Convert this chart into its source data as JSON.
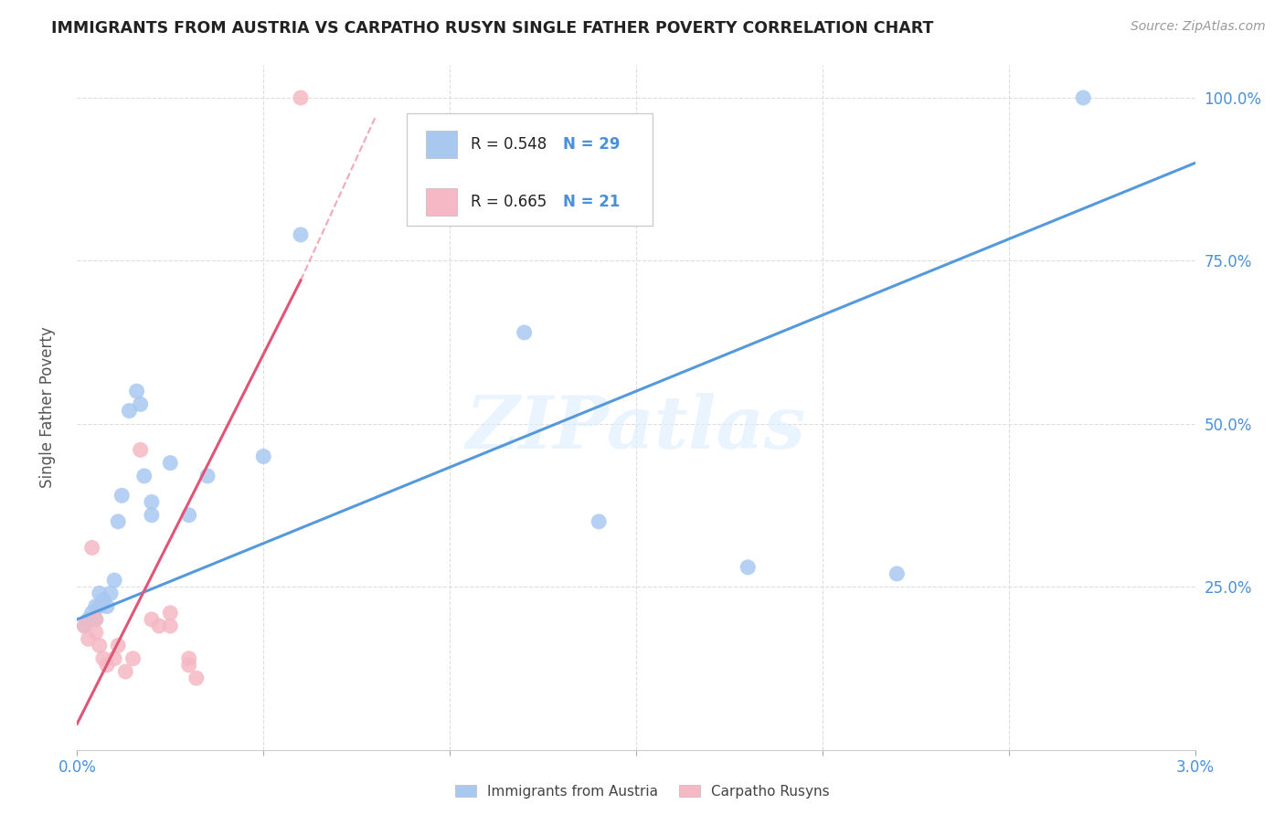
{
  "title": "IMMIGRANTS FROM AUSTRIA VS CARPATHO RUSYN SINGLE FATHER POVERTY CORRELATION CHART",
  "source": "Source: ZipAtlas.com",
  "ylabel": "Single Father Poverty",
  "xlim": [
    0.0,
    0.03
  ],
  "ylim": [
    0.0,
    1.05
  ],
  "xticks": [
    0.0,
    0.005,
    0.01,
    0.015,
    0.02,
    0.025,
    0.03
  ],
  "xticklabels": [
    "0.0%",
    "",
    "",
    "",
    "",
    "",
    "3.0%"
  ],
  "yticks": [
    0.0,
    0.25,
    0.5,
    0.75,
    1.0
  ],
  "yticklabels": [
    "",
    "25.0%",
    "50.0%",
    "75.0%",
    "100.0%"
  ],
  "blue_color": "#a8c8f0",
  "pink_color": "#f5b8c4",
  "blue_line_color": "#5599dd",
  "pink_line_color": "#e05575",
  "legend_r_blue": "R = 0.548",
  "legend_n_blue": "N = 29",
  "legend_r_pink": "R = 0.665",
  "legend_n_pink": "N = 21",
  "watermark": "ZIPatlas",
  "blue_points_x": [
    0.0002,
    0.0003,
    0.0004,
    0.0005,
    0.0005,
    0.0006,
    0.0006,
    0.0007,
    0.0008,
    0.0009,
    0.001,
    0.0011,
    0.0012,
    0.0014,
    0.0016,
    0.0017,
    0.0018,
    0.002,
    0.002,
    0.0025,
    0.003,
    0.0035,
    0.005,
    0.006,
    0.012,
    0.014,
    0.018,
    0.022,
    0.027
  ],
  "blue_points_y": [
    0.19,
    0.2,
    0.21,
    0.2,
    0.22,
    0.22,
    0.24,
    0.23,
    0.22,
    0.24,
    0.26,
    0.35,
    0.39,
    0.52,
    0.55,
    0.53,
    0.42,
    0.36,
    0.38,
    0.44,
    0.36,
    0.42,
    0.45,
    0.79,
    0.64,
    0.35,
    0.28,
    0.27,
    1.0
  ],
  "pink_points_x": [
    0.0002,
    0.0003,
    0.0004,
    0.0005,
    0.0005,
    0.0006,
    0.0007,
    0.0008,
    0.001,
    0.0011,
    0.0013,
    0.0015,
    0.0017,
    0.002,
    0.0022,
    0.0025,
    0.0025,
    0.003,
    0.003,
    0.0032,
    0.006
  ],
  "pink_points_y": [
    0.19,
    0.17,
    0.31,
    0.2,
    0.18,
    0.16,
    0.14,
    0.13,
    0.14,
    0.16,
    0.12,
    0.14,
    0.46,
    0.2,
    0.19,
    0.21,
    0.19,
    0.14,
    0.13,
    0.11,
    1.0
  ],
  "blue_line_x0": 0.0,
  "blue_line_y0": 0.2,
  "blue_line_x1": 0.03,
  "blue_line_y1": 0.9,
  "pink_line_x0": 0.0,
  "pink_line_y0": 0.04,
  "pink_line_x1": 0.006,
  "pink_line_y1": 0.72,
  "background_color": "#ffffff",
  "grid_color": "#dddddd",
  "grid_style": "--"
}
